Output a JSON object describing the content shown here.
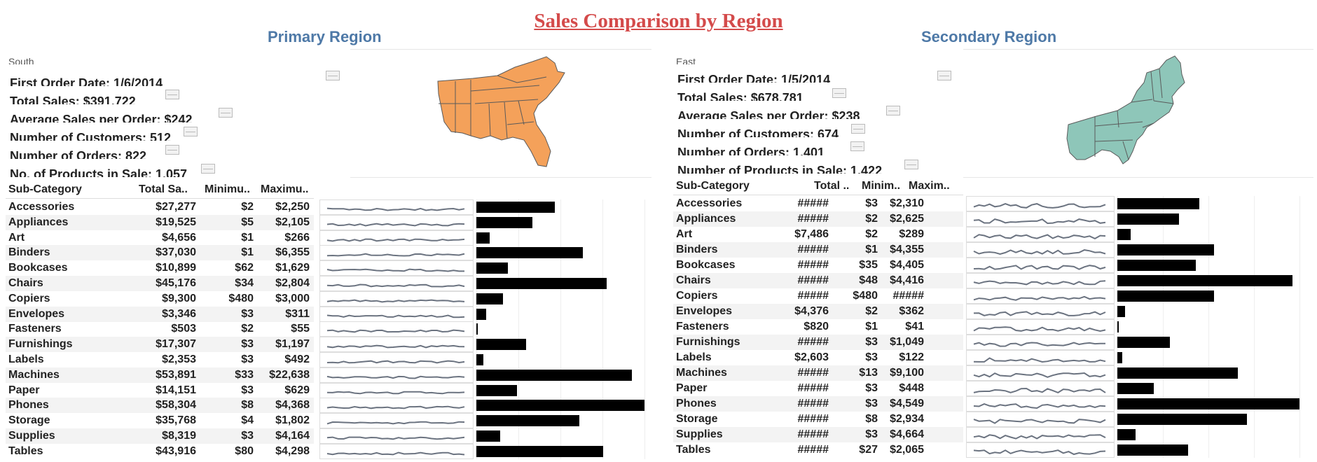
{
  "title": "Sales Comparison by Region",
  "columns": {
    "sub_category": "Sub-Category"
  },
  "colors": {
    "title": "#d44b4b",
    "panel_title": "#4e79a7",
    "south_map": "#f4a15a",
    "east_map": "#8ec6b9",
    "bars": "#000000",
    "sparkline": "#6b7380"
  },
  "left": {
    "panel_title": "Primary Region",
    "region": "South",
    "metrics": {
      "first_order": "First Order Date: 1/6/2014",
      "total_sales": "Total Sales: $391,722",
      "avg_sales": "Average Sales per Order: $242",
      "customers": "Number of Customers: 512",
      "orders": "Number of Orders: 822",
      "products": "No. of Products in Sale: 1,057"
    },
    "headers": {
      "total": "Total Sa..",
      "min": "Minimu..",
      "max": "Maximu.."
    },
    "rows": [
      {
        "name": "Accessories",
        "total": "$27,277",
        "min": "$2",
        "max": "$2,250",
        "bar": 27277
      },
      {
        "name": "Appliances",
        "total": "$19,525",
        "min": "$5",
        "max": "$2,105",
        "bar": 19525
      },
      {
        "name": "Art",
        "total": "$4,656",
        "min": "$1",
        "max": "$266",
        "bar": 4656
      },
      {
        "name": "Binders",
        "total": "$37,030",
        "min": "$1",
        "max": "$6,355",
        "bar": 37030
      },
      {
        "name": "Bookcases",
        "total": "$10,899",
        "min": "$62",
        "max": "$1,629",
        "bar": 10899
      },
      {
        "name": "Chairs",
        "total": "$45,176",
        "min": "$34",
        "max": "$2,804",
        "bar": 45176
      },
      {
        "name": "Copiers",
        "total": "$9,300",
        "min": "$480",
        "max": "$3,000",
        "bar": 9300
      },
      {
        "name": "Envelopes",
        "total": "$3,346",
        "min": "$3",
        "max": "$311",
        "bar": 3346
      },
      {
        "name": "Fasteners",
        "total": "$503",
        "min": "$2",
        "max": "$55",
        "bar": 503
      },
      {
        "name": "Furnishings",
        "total": "$17,307",
        "min": "$3",
        "max": "$1,197",
        "bar": 17307
      },
      {
        "name": "Labels",
        "total": "$2,353",
        "min": "$3",
        "max": "$492",
        "bar": 2353
      },
      {
        "name": "Machines",
        "total": "$53,891",
        "min": "$33",
        "max": "$22,638",
        "bar": 53891
      },
      {
        "name": "Paper",
        "total": "$14,151",
        "min": "$3",
        "max": "$629",
        "bar": 14151
      },
      {
        "name": "Phones",
        "total": "$58,304",
        "min": "$8",
        "max": "$4,368",
        "bar": 58304
      },
      {
        "name": "Storage",
        "total": "$35,768",
        "min": "$4",
        "max": "$1,802",
        "bar": 35768
      },
      {
        "name": "Supplies",
        "total": "$8,319",
        "min": "$3",
        "max": "$4,164",
        "bar": 8319
      },
      {
        "name": "Tables",
        "total": "$43,916",
        "min": "$80",
        "max": "$4,298",
        "bar": 43916
      }
    ]
  },
  "right": {
    "panel_title": "Secondary Region",
    "region": "East",
    "metrics": {
      "first_order": "First Order Date: 1/5/2014",
      "total_sales": "Total Sales: $678,781",
      "avg_sales": "Average Sales per Order: $238",
      "customers": "Number of Customers: 674",
      "orders": "Number of Orders: 1,401",
      "products": "Number of Products in Sale: 1,422"
    },
    "headers": {
      "total": "Total ..",
      "min": "Minim..",
      "max": "Maxim.."
    },
    "rows": [
      {
        "name": "Accessories",
        "total": "#####",
        "min": "$3",
        "max": "$2,310",
        "bar": 45000
      },
      {
        "name": "Appliances",
        "total": "#####",
        "min": "$2",
        "max": "$2,625",
        "bar": 34000
      },
      {
        "name": "Art",
        "total": "$7,486",
        "min": "$2",
        "max": "$289",
        "bar": 7486
      },
      {
        "name": "Binders",
        "total": "#####",
        "min": "$1",
        "max": "$4,355",
        "bar": 53000
      },
      {
        "name": "Bookcases",
        "total": "#####",
        "min": "$35",
        "max": "$4,405",
        "bar": 43000
      },
      {
        "name": "Chairs",
        "total": "#####",
        "min": "$48",
        "max": "$4,416",
        "bar": 96000
      },
      {
        "name": "Copiers",
        "total": "#####",
        "min": "$480",
        "max": "#####",
        "bar": 53000
      },
      {
        "name": "Envelopes",
        "total": "$4,376",
        "min": "$2",
        "max": "$362",
        "bar": 4376
      },
      {
        "name": "Fasteners",
        "total": "$820",
        "min": "$1",
        "max": "$41",
        "bar": 820
      },
      {
        "name": "Furnishings",
        "total": "#####",
        "min": "$3",
        "max": "$1,049",
        "bar": 29000
      },
      {
        "name": "Labels",
        "total": "$2,603",
        "min": "$3",
        "max": "$122",
        "bar": 2603
      },
      {
        "name": "Machines",
        "total": "#####",
        "min": "$13",
        "max": "$9,100",
        "bar": 66000
      },
      {
        "name": "Paper",
        "total": "#####",
        "min": "$3",
        "max": "$448",
        "bar": 20000
      },
      {
        "name": "Phones",
        "total": "#####",
        "min": "$3",
        "max": "$4,549",
        "bar": 100000
      },
      {
        "name": "Storage",
        "total": "#####",
        "min": "$8",
        "max": "$2,934",
        "bar": 71000
      },
      {
        "name": "Supplies",
        "total": "#####",
        "min": "$3",
        "max": "$4,664",
        "bar": 10000
      },
      {
        "name": "Tables",
        "total": "#####",
        "min": "$27",
        "max": "$2,065",
        "bar": 39000
      }
    ]
  }
}
